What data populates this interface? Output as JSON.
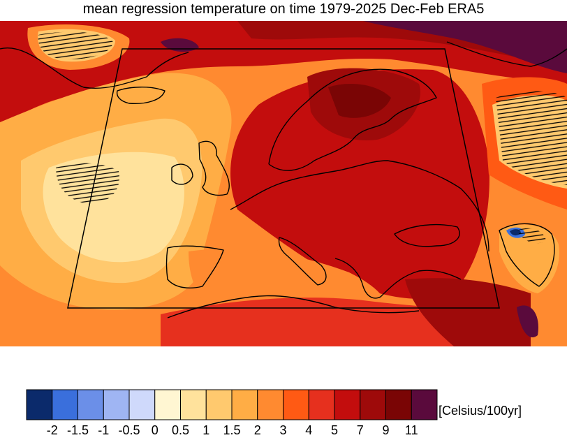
{
  "title": "mean regression temperature on time 1979-2025 Dec-Feb ERA5",
  "colorbar": {
    "colors": [
      "#0b2a6b",
      "#3a6fdc",
      "#6b8fe8",
      "#9fb5f3",
      "#cfd9fb",
      "#fff6d2",
      "#ffe29c",
      "#ffc96e",
      "#ffad45",
      "#ff8a30",
      "#ff5a14",
      "#e6301e",
      "#c30d0d",
      "#9e0a0a",
      "#7a0505",
      "#5a0a3c"
    ],
    "labels": [
      "-2",
      "-1.5",
      "-1",
      "-0.5",
      "0",
      "0.5",
      "1",
      "1.5",
      "2",
      "3",
      "4",
      "5",
      "7",
      "9",
      "11"
    ],
    "unit": "[Celsius/100yr]"
  }
}
